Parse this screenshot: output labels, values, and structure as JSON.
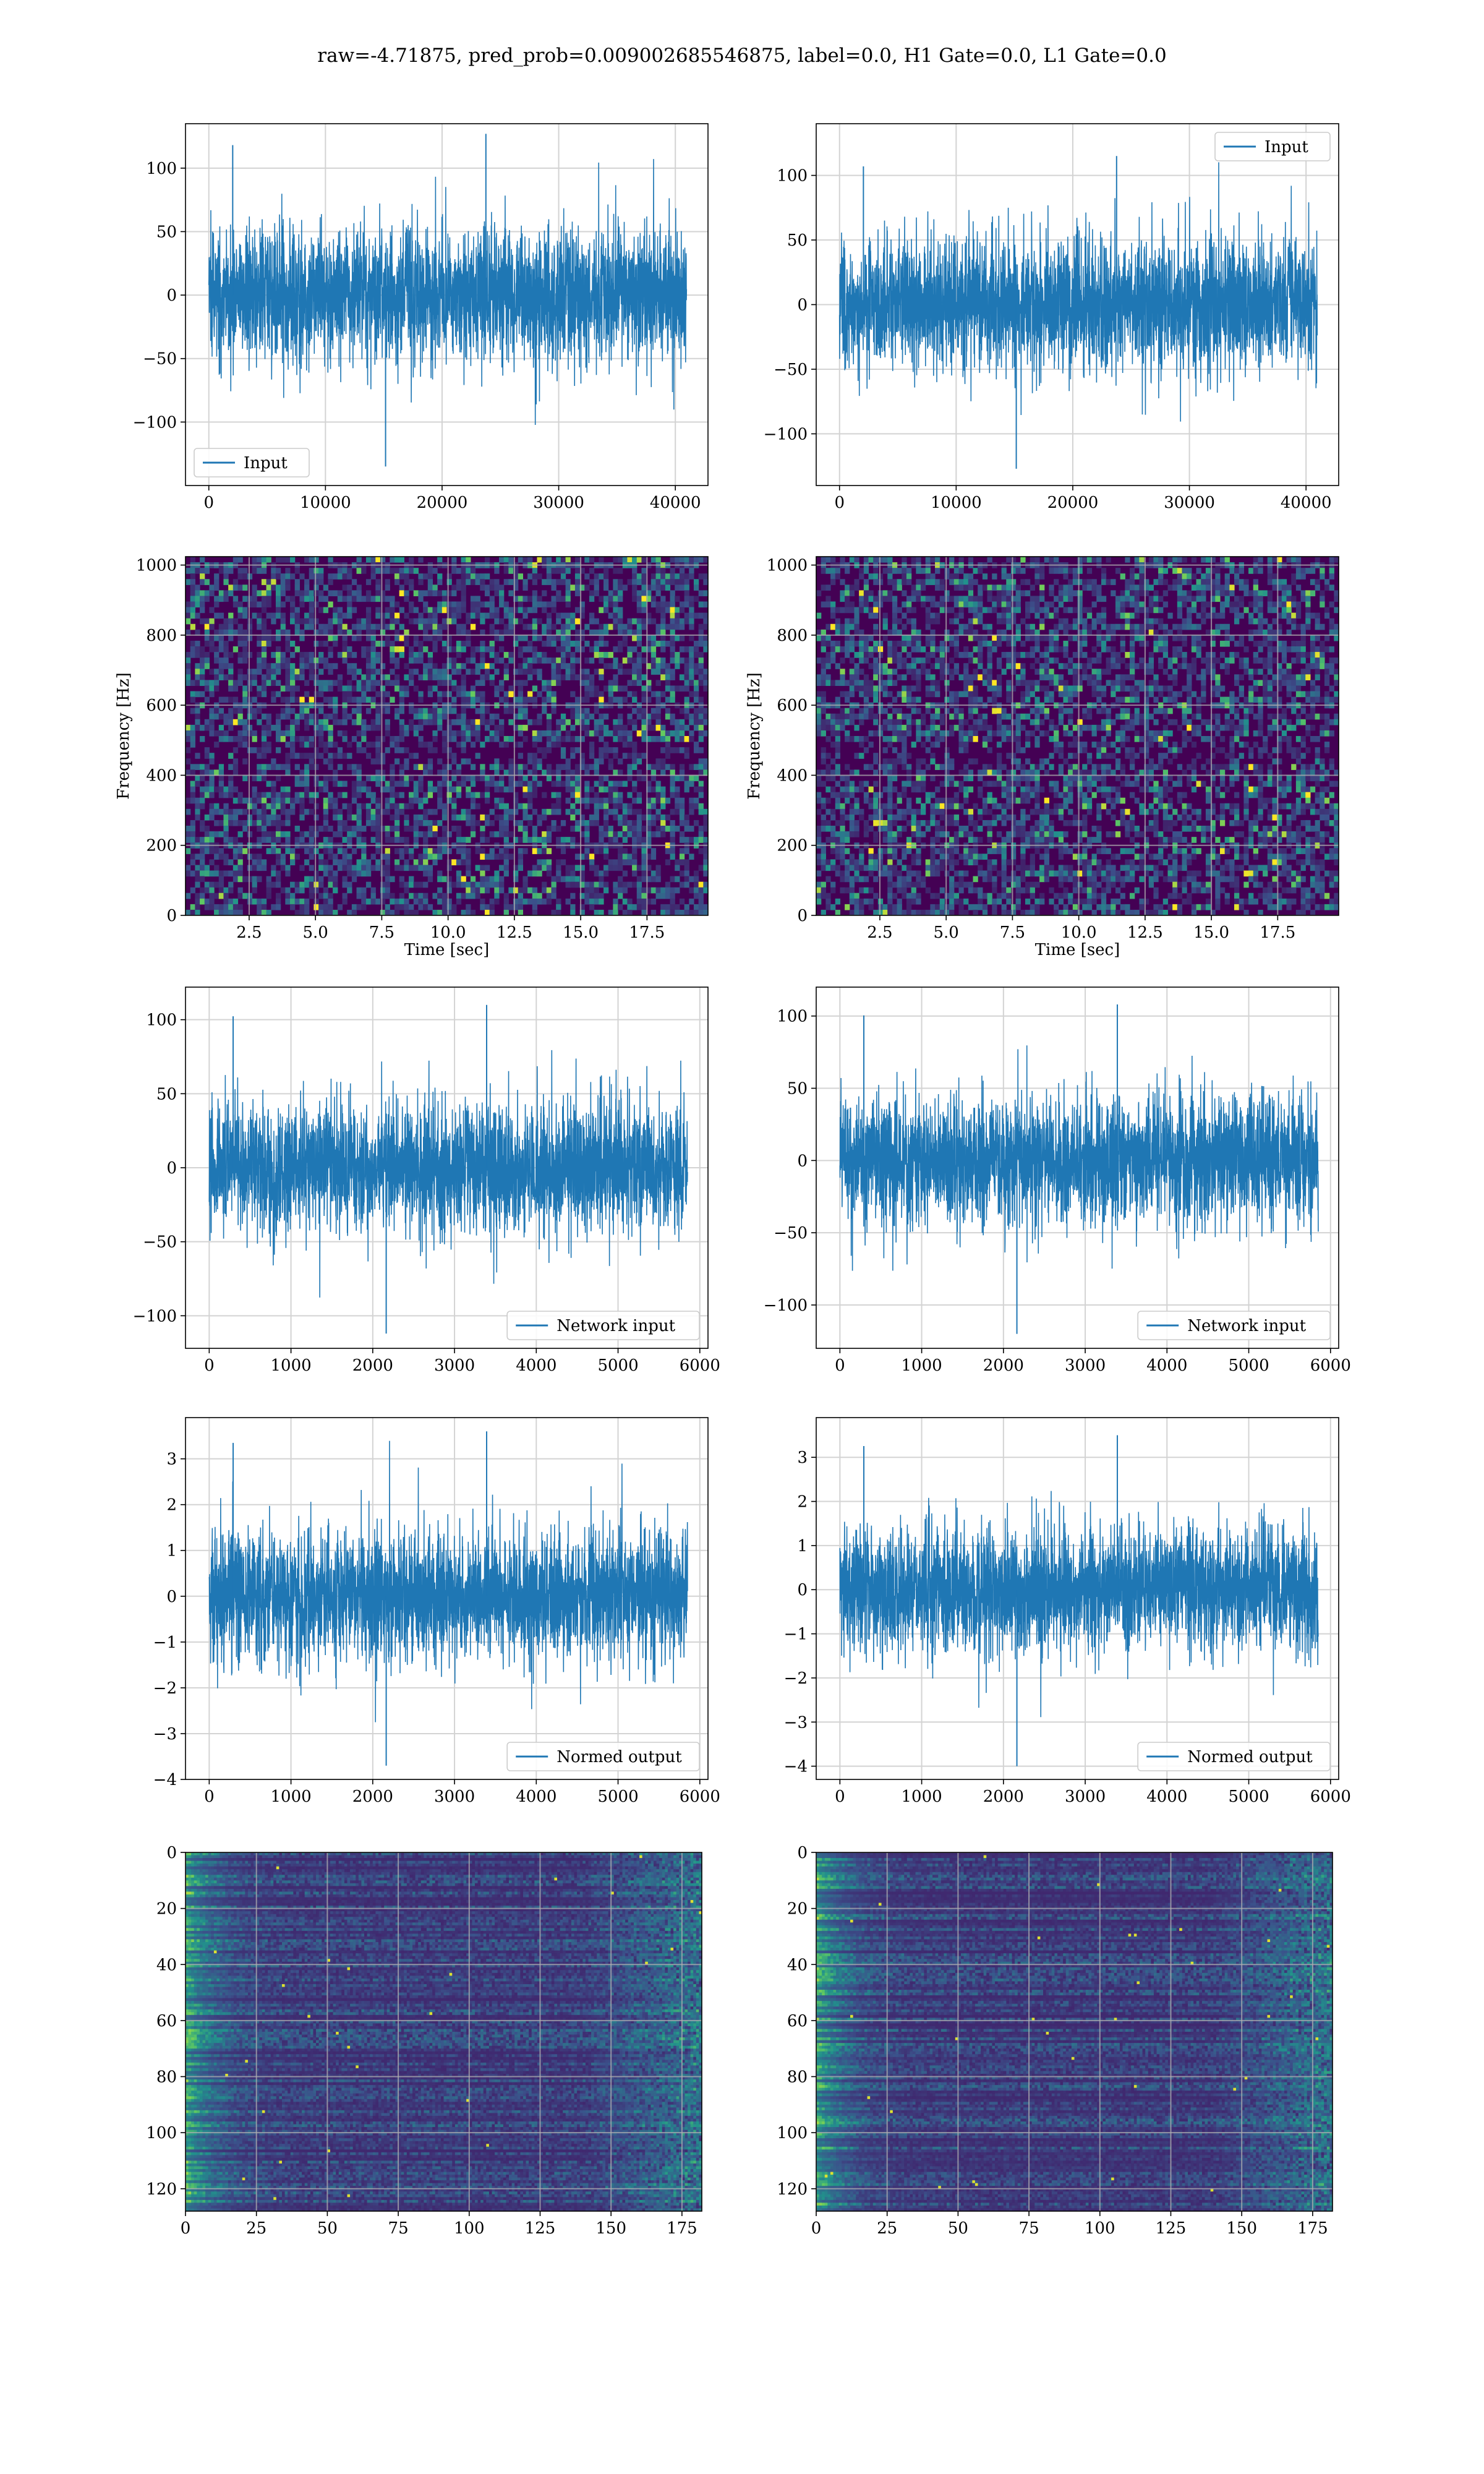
{
  "figure": {
    "suptitle": "raw=-4.71875, pred_prob=0.009002685546875, label=0.0, H1 Gate=0.0, L1 Gate=0.0"
  },
  "colors": {
    "line": "#1f77b4",
    "grid": "#d3d3d3",
    "viridis_low": "#440154",
    "viridis_mid": "#21918c",
    "viridis_high": "#fde725"
  },
  "chart_data": [
    {
      "id": "h1-input",
      "type": "line",
      "xlim": [
        -2000,
        42800
      ],
      "ylim": [
        -150,
        135
      ],
      "xticks": [
        0,
        10000,
        20000,
        30000,
        40000
      ],
      "xtick_labels": [
        "0",
        "10000",
        "20000",
        "30000",
        "40000"
      ],
      "yticks": [
        -100,
        -50,
        0,
        50,
        100
      ],
      "ytick_labels": [
        "−100",
        "−50",
        "0",
        "50",
        "100"
      ],
      "grid": true,
      "series": [
        {
          "name": "Input",
          "x_range": [
            0,
            40960
          ],
          "typical_band": [
            -65,
            65
          ],
          "extremes": [
            -135,
            127
          ]
        }
      ],
      "legend": {
        "loc": "lower left"
      },
      "xlabel": "",
      "ylabel": ""
    },
    {
      "id": "l1-input",
      "type": "line",
      "xlim": [
        -2000,
        42800
      ],
      "ylim": [
        -140,
        140
      ],
      "xticks": [
        0,
        10000,
        20000,
        30000,
        40000
      ],
      "xtick_labels": [
        "0",
        "10000",
        "20000",
        "30000",
        "40000"
      ],
      "yticks": [
        -100,
        -50,
        0,
        50,
        100
      ],
      "ytick_labels": [
        "−100",
        "−50",
        "0",
        "50",
        "100"
      ],
      "grid": true,
      "series": [
        {
          "name": "Input",
          "x_range": [
            0,
            40960
          ],
          "typical_band": [
            -65,
            65
          ],
          "extremes": [
            -127,
            115
          ]
        }
      ],
      "legend": {
        "loc": "upper right"
      },
      "xlabel": "",
      "ylabel": ""
    },
    {
      "id": "h1-spectrogram",
      "type": "heatmap",
      "xlim": [
        0.1,
        19.8
      ],
      "ylim": [
        0,
        1024
      ],
      "xticks": [
        2.5,
        5,
        7.5,
        10,
        12.5,
        15,
        17.5
      ],
      "xtick_labels": [
        "2.5",
        "5.0",
        "7.5",
        "10.0",
        "12.5",
        "15.0",
        "17.5"
      ],
      "yticks": [
        0,
        200,
        400,
        600,
        800,
        1000
      ],
      "ytick_labels": [
        "0",
        "200",
        "400",
        "600",
        "800",
        "1000"
      ],
      "grid": true,
      "colormap": "viridis",
      "xlabel": "Time [sec]",
      "ylabel": "Frequency [Hz]"
    },
    {
      "id": "l1-spectrogram",
      "type": "heatmap",
      "xlim": [
        0.1,
        19.8
      ],
      "ylim": [
        0,
        1024
      ],
      "xticks": [
        2.5,
        5,
        7.5,
        10,
        12.5,
        15,
        17.5
      ],
      "xtick_labels": [
        "2.5",
        "5.0",
        "7.5",
        "10.0",
        "12.5",
        "15.0",
        "17.5"
      ],
      "yticks": [
        0,
        200,
        400,
        600,
        800,
        1000
      ],
      "ytick_labels": [
        "0",
        "200",
        "400",
        "600",
        "800",
        "1000"
      ],
      "grid": true,
      "colormap": "viridis",
      "xlabel": "Time [sec]",
      "ylabel": "Frequency [Hz]"
    },
    {
      "id": "h1-network-input",
      "type": "line",
      "xlim": [
        -290,
        6100
      ],
      "ylim": [
        -122,
        122
      ],
      "xticks": [
        0,
        1000,
        2000,
        3000,
        4000,
        5000,
        6000
      ],
      "xtick_labels": [
        "0",
        "1000",
        "2000",
        "3000",
        "4000",
        "5000",
        "6000"
      ],
      "yticks": [
        -100,
        -50,
        0,
        50,
        100
      ],
      "ytick_labels": [
        "−100",
        "−50",
        "0",
        "50",
        "100"
      ],
      "grid": true,
      "series": [
        {
          "name": "Network input",
          "x_range": [
            0,
            5850
          ],
          "typical_band": [
            -55,
            55
          ],
          "extremes": [
            -112,
            110
          ]
        }
      ],
      "legend": {
        "loc": "lower right"
      },
      "xlabel": "",
      "ylabel": ""
    },
    {
      "id": "l1-network-input",
      "type": "line",
      "xlim": [
        -290,
        6100
      ],
      "ylim": [
        -130,
        120
      ],
      "xticks": [
        0,
        1000,
        2000,
        3000,
        4000,
        5000,
        6000
      ],
      "xtick_labels": [
        "0",
        "1000",
        "2000",
        "3000",
        "4000",
        "5000",
        "6000"
      ],
      "yticks": [
        -100,
        -50,
        0,
        50,
        100
      ],
      "ytick_labels": [
        "−100",
        "−50",
        "0",
        "50",
        "100"
      ],
      "grid": true,
      "series": [
        {
          "name": "Network input",
          "x_range": [
            0,
            5850
          ],
          "typical_band": [
            -55,
            55
          ],
          "extremes": [
            -120,
            108
          ]
        }
      ],
      "legend": {
        "loc": "lower right"
      },
      "xlabel": "",
      "ylabel": ""
    },
    {
      "id": "h1-normed-output",
      "type": "line",
      "xlim": [
        -290,
        6100
      ],
      "ylim": [
        -4,
        3.9
      ],
      "xticks": [
        0,
        1000,
        2000,
        3000,
        4000,
        5000,
        6000
      ],
      "xtick_labels": [
        "0",
        "1000",
        "2000",
        "3000",
        "4000",
        "5000",
        "6000"
      ],
      "yticks": [
        -4,
        -3,
        -2,
        -1,
        0,
        1,
        2,
        3
      ],
      "ytick_labels": [
        "−4",
        "−3",
        "−2",
        "−1",
        "0",
        "1",
        "2",
        "3"
      ],
      "grid": true,
      "series": [
        {
          "name": "Normed output",
          "x_range": [
            0,
            5850
          ],
          "typical_band": [
            -1.8,
            1.8
          ],
          "extremes": [
            -3.7,
            3.6
          ]
        }
      ],
      "legend": {
        "loc": "lower right"
      },
      "xlabel": "",
      "ylabel": ""
    },
    {
      "id": "l1-normed-output",
      "type": "line",
      "xlim": [
        -290,
        6100
      ],
      "ylim": [
        -4.3,
        3.9
      ],
      "xticks": [
        0,
        1000,
        2000,
        3000,
        4000,
        5000,
        6000
      ],
      "xtick_labels": [
        "0",
        "1000",
        "2000",
        "3000",
        "4000",
        "5000",
        "6000"
      ],
      "yticks": [
        -4,
        -3,
        -2,
        -1,
        0,
        1,
        2,
        3
      ],
      "ytick_labels": [
        "−4",
        "−3",
        "−2",
        "−1",
        "0",
        "1",
        "2",
        "3"
      ],
      "grid": true,
      "series": [
        {
          "name": "Normed output",
          "x_range": [
            0,
            5850
          ],
          "typical_band": [
            -1.8,
            1.8
          ],
          "extremes": [
            -4,
            3.5
          ]
        }
      ],
      "legend": {
        "loc": "lower right"
      },
      "xlabel": "",
      "ylabel": ""
    },
    {
      "id": "h1-feature-map",
      "type": "heatmap",
      "xlim": [
        0,
        182
      ],
      "ylim": [
        128,
        0
      ],
      "xticks": [
        0,
        25,
        50,
        75,
        100,
        125,
        150,
        175
      ],
      "xtick_labels": [
        "0",
        "25",
        "50",
        "75",
        "100",
        "125",
        "150",
        "175"
      ],
      "yticks": [
        0,
        20,
        40,
        60,
        80,
        100,
        120
      ],
      "ytick_labels": [
        "0",
        "20",
        "40",
        "60",
        "80",
        "100",
        "120"
      ],
      "grid": true,
      "colormap": "viridis",
      "xlabel": "",
      "ylabel": ""
    },
    {
      "id": "l1-feature-map",
      "type": "heatmap",
      "xlim": [
        0,
        182
      ],
      "ylim": [
        128,
        0
      ],
      "xticks": [
        0,
        25,
        50,
        75,
        100,
        125,
        150,
        175
      ],
      "xtick_labels": [
        "0",
        "25",
        "50",
        "75",
        "100",
        "125",
        "150",
        "175"
      ],
      "yticks": [
        0,
        20,
        40,
        60,
        80,
        100,
        120
      ],
      "ytick_labels": [
        "0",
        "20",
        "40",
        "60",
        "80",
        "100",
        "120"
      ],
      "grid": true,
      "colormap": "viridis",
      "xlabel": "",
      "ylabel": ""
    }
  ]
}
